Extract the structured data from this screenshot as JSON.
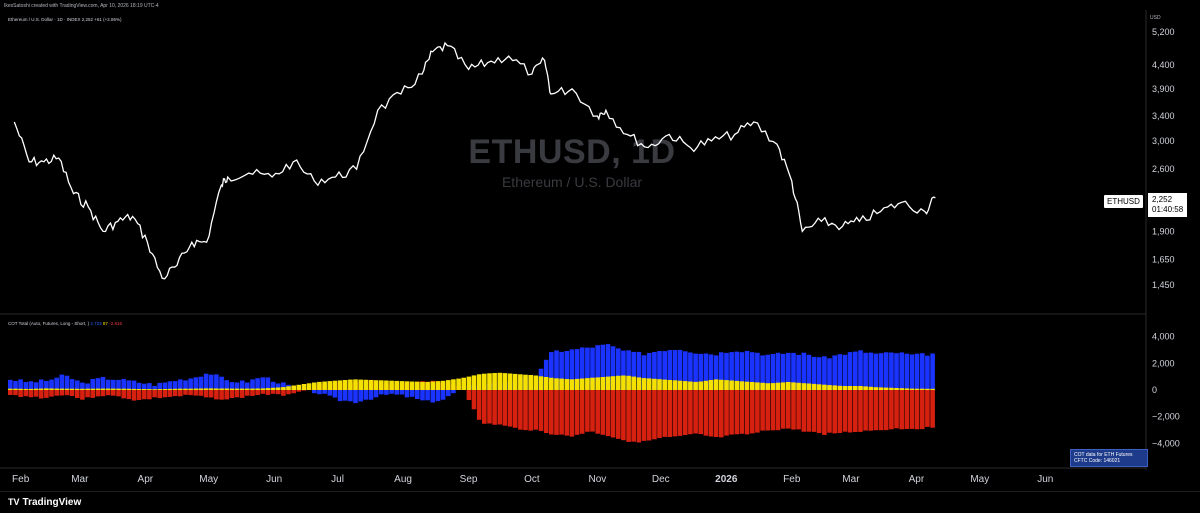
{
  "header": {
    "credit": "IkesSatoshi created with TradingView.com, Apr 10, 2026 18:19 UTC-4",
    "legend": "Ethereum / U.S. Dollar · 1D · INDEX  2,252  +61 (+2.86%)"
  },
  "watermark": {
    "title": "ETHUSD, 1D",
    "subtitle": "Ethereum / U.S. Dollar"
  },
  "price_axis": {
    "unit": "USD",
    "ticks": [
      "5,200",
      "4,400",
      "3,900",
      "3,400",
      "3,000",
      "2,600",
      "1,900",
      "1,650",
      "1,450"
    ]
  },
  "price_tag": {
    "symbol": "ETHUSD",
    "price": "2,252",
    "countdown": "01:40:58"
  },
  "cot": {
    "legend_prefix": "COT Total (Auto, Futures, Long - Short, )",
    "legend_blue": "2,723",
    "legend_yellow": "87",
    "legend_red": "-2,816",
    "axis_ticks": [
      "4,000",
      "2,000",
      "0",
      "−2,000",
      "−4,000"
    ],
    "note_line1": "COT data for ETH Futures",
    "note_line2": "CFTC Code: 146021"
  },
  "x_axis": {
    "labels": [
      "Feb",
      "Mar",
      "Apr",
      "May",
      "Jun",
      "Jul",
      "Aug",
      "Sep",
      "Oct",
      "Nov",
      "Dec",
      "2026",
      "Feb",
      "Mar",
      "Apr",
      "May",
      "Jun"
    ]
  },
  "footer": {
    "brand": "TradingView"
  },
  "colors": {
    "price_line": "#ffffff",
    "long": "#1a33ff",
    "short": "#d62010",
    "spread": "#f5e100",
    "background": "#000000"
  },
  "chart_data": [
    {
      "type": "line",
      "series_name": "ETHUSD",
      "x": [
        "2025-01-29",
        "2025-02-05",
        "2025-02-12",
        "2025-02-19",
        "2025-02-26",
        "2025-03-05",
        "2025-03-12",
        "2025-03-19",
        "2025-03-26",
        "2025-04-02",
        "2025-04-09",
        "2025-04-16",
        "2025-04-23",
        "2025-04-30",
        "2025-05-07",
        "2025-05-10",
        "2025-05-20",
        "2025-05-31",
        "2025-06-10",
        "2025-06-20",
        "2025-06-30",
        "2025-07-10",
        "2025-07-20",
        "2025-07-31",
        "2025-08-10",
        "2025-08-15",
        "2025-08-22",
        "2025-09-01",
        "2025-09-10",
        "2025-09-20",
        "2025-10-01",
        "2025-10-07",
        "2025-10-10",
        "2025-10-20",
        "2025-11-01",
        "2025-11-05",
        "2025-11-15",
        "2025-11-25",
        "2025-12-05",
        "2025-12-15",
        "2025-12-25",
        "2026-01-05",
        "2026-01-14",
        "2026-01-25",
        "2026-02-01",
        "2026-02-06",
        "2026-02-15",
        "2026-02-25",
        "2026-03-05",
        "2026-03-15",
        "2026-03-25",
        "2026-04-05",
        "2026-04-10"
      ],
      "y": [
        3300,
        2700,
        2700,
        2750,
        2300,
        2150,
        1900,
        2000,
        2050,
        1800,
        1500,
        1600,
        1800,
        1800,
        2400,
        2500,
        2550,
        2500,
        2700,
        2450,
        2500,
        2600,
        3500,
        3800,
        4200,
        4700,
        4850,
        4300,
        4450,
        4600,
        4200,
        4500,
        3800,
        3900,
        3400,
        3500,
        3100,
        2900,
        3100,
        2900,
        3000,
        3100,
        3300,
        2950,
        2450,
        1900,
        2000,
        1950,
        2000,
        2100,
        2200,
        2100,
        2252
      ],
      "ylim": [
        1400,
        5300
      ]
    },
    {
      "type": "bar",
      "series": [
        {
          "name": "Long",
          "values": [
            800,
            600,
            700,
            1100,
            500,
            900,
            800,
            600,
            400,
            700,
            900,
            1300,
            700,
            600,
            1000,
            500,
            100,
            -200,
            -700,
            -900,
            -600,
            -300,
            -500,
            -900,
            -700,
            200,
            500,
            600,
            800,
            1000,
            2900,
            3000,
            3200,
            3400,
            2900,
            2700,
            3000,
            3100,
            2800,
            2700,
            3000,
            2900,
            2600,
            2800,
            2700,
            2400,
            2700,
            2900,
            2700,
            2800,
            2600,
            2723
          ]
        },
        {
          "name": "Short",
          "values": [
            -400,
            -500,
            -600,
            -300,
            -700,
            -400,
            -500,
            -800,
            -600,
            -500,
            -400,
            -600,
            -700,
            -500,
            -300,
            -400,
            -100,
            400,
            600,
            500,
            700,
            400,
            600,
            700,
            500,
            300,
            -2500,
            -2600,
            -2900,
            -3000,
            -3300,
            -3500,
            -3100,
            -3400,
            -3800,
            -3900,
            -3600,
            -3500,
            -3300,
            -3600,
            -3400,
            -3300,
            -3000,
            -2900,
            -3100,
            -3300,
            -3200,
            -3100,
            -3000,
            -2900,
            -2900,
            -2816
          ]
        },
        {
          "name": "Spread",
          "values": [
            100,
            80,
            120,
            100,
            90,
            110,
            100,
            80,
            60,
            90,
            100,
            120,
            110,
            100,
            120,
            200,
            400,
            600,
            700,
            800,
            750,
            700,
            650,
            600,
            700,
            900,
            1200,
            1300,
            1200,
            1100,
            900,
            800,
            900,
            1000,
            1100,
            900,
            800,
            700,
            600,
            800,
            700,
            600,
            500,
            600,
            500,
            400,
            300,
            300,
            200,
            150,
            100,
            87
          ]
        }
      ],
      "ylim": [
        -4500,
        4500
      ]
    }
  ]
}
